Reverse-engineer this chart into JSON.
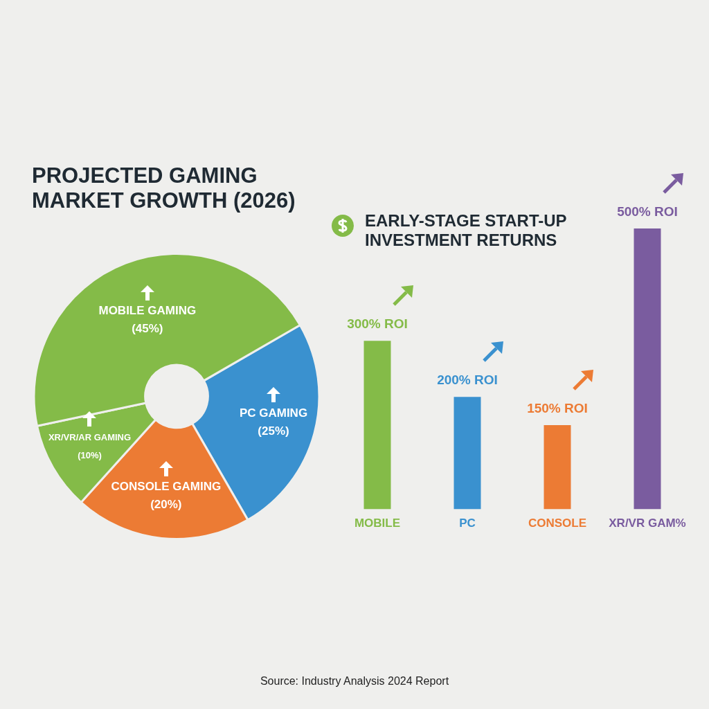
{
  "chart_data": [
    {
      "type": "donut",
      "title": "PROJECTED GAMING MARKET GROWTH (2026)",
      "categories": [
        "PC GAMING",
        "CONSOLE GAMING",
        "XR/VR/AR GAMING",
        "MOBILE GAMING"
      ],
      "values": [
        25,
        20,
        10,
        45
      ],
      "colors": [
        "#3a91cf",
        "#ec7b34",
        "#84bb48",
        "#84bb48"
      ],
      "value_labels": [
        "(25%)",
        "(20%)",
        "(10%)",
        "(45%)"
      ]
    },
    {
      "type": "bar",
      "title": "EARLY-STAGE START-UP INVESTMENT RETURNS",
      "categories": [
        "MOBILE",
        "PC",
        "CONSOLE",
        "XR/VR GAM%"
      ],
      "values": [
        300,
        200,
        150,
        500
      ],
      "colors": [
        "#84bb48",
        "#3a91cf",
        "#ec7b34",
        "#7a5c9f"
      ],
      "value_labels": [
        "300% ROI",
        "200% ROI",
        "150% ROI",
        "500% ROI"
      ],
      "annotations": [
        "Source: Industry Analysis 2024 Report"
      ]
    }
  ]
}
